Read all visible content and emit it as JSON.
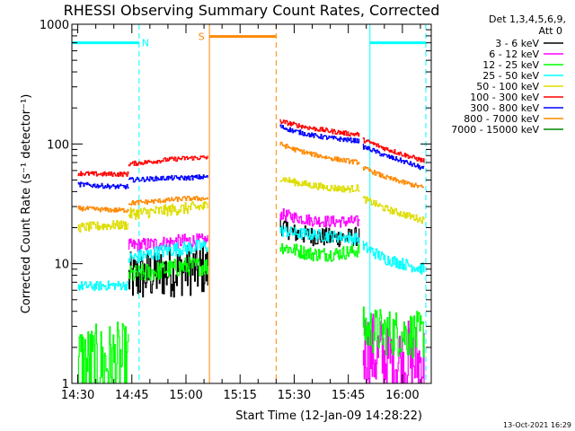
{
  "chart_data": {
    "type": "line",
    "title": "RHESSI Observing Summary Count Rates, Corrected",
    "xlabel": "Start Time (12-Jan-09 14:28:22)",
    "ylabel": "Corrected Count Rate (s⁻¹ detector⁻¹)",
    "y_scale": "log",
    "ylim": [
      1,
      1000
    ],
    "xlim": [
      "14:28:22",
      "16:08:00"
    ],
    "x_ticks": [
      "14:30",
      "14:45",
      "15:00",
      "15:15",
      "15:30",
      "15:45",
      "16:00"
    ],
    "y_ticks": [
      "1",
      "10",
      "100",
      "1000"
    ],
    "legend_header": [
      "Det 1,3,4,5,6,9,",
      "Att 0"
    ],
    "legend_position": "right",
    "timestamp": "13-Oct-2021 16:29",
    "markers": [
      {
        "label": "N",
        "color": "#00ffff",
        "kind": "night",
        "start": "14:28:22",
        "end": "14:47:00",
        "level": 700
      },
      {
        "label": "S",
        "color": "#ff8800",
        "kind": "saa",
        "start": "15:06:30",
        "end": "15:25:00",
        "level": 790
      },
      {
        "label": "",
        "color": "#00ffff",
        "kind": "night",
        "start": "15:51:00",
        "end": "16:06:30",
        "level": 700
      }
    ],
    "series": [
      {
        "name": "3 - 6 keV",
        "color": "#000000",
        "segments": [
          {
            "times": [
              "14:44:00",
              "14:50:00",
              "14:55:00",
              "15:00:00",
              "15:05:00",
              "15:06:00"
            ],
            "values": [
              7.5,
              8.0,
              8.6,
              8.9,
              8.9,
              8.6
            ],
            "noise": 0.22
          },
          {
            "times": [
              "15:26:00",
              "15:30:00",
              "15:35:00",
              "15:40:00",
              "15:45:00",
              "15:48:00"
            ],
            "values": [
              21,
              18,
              17,
              16.5,
              16.5,
              17
            ],
            "noise": 0.08
          }
        ]
      },
      {
        "name": "6 - 12 keV",
        "color": "#ff00ff",
        "segments": [
          {
            "times": [
              "14:44:00",
              "14:50:00",
              "14:55:00",
              "15:00:00",
              "15:05:00",
              "15:06:00"
            ],
            "values": [
              14,
              14.5,
              15,
              15.5,
              15.5,
              15.5
            ],
            "noise": 0.06
          },
          {
            "times": [
              "15:26:00",
              "15:30:00",
              "15:35:00",
              "15:40:00",
              "15:45:00",
              "15:48:00"
            ],
            "values": [
              26,
              24.5,
              23,
              22.5,
              22.5,
              22.5
            ],
            "noise": 0.05
          },
          {
            "times": [
              "15:49:00",
              "15:55:00",
              "16:00:00",
              "16:06:00"
            ],
            "values": [
              2.0,
              1.6,
              1.55,
              1.5
            ],
            "noise": 0.35
          }
        ]
      },
      {
        "name": "12 - 25 keV",
        "color": "#00ff00",
        "segments": [
          {
            "times": [
              "14:30:00",
              "14:35:00",
              "14:40:00",
              "14:44:00"
            ],
            "values": [
              1.5,
              1.4,
              1.5,
              1.4
            ],
            "noise": 0.35
          },
          {
            "times": [
              "14:44:00",
              "14:50:00",
              "14:55:00",
              "15:00:00",
              "15:05:00",
              "15:06:00"
            ],
            "values": [
              8.0,
              8.5,
              9.0,
              9.5,
              9.5,
              9.5
            ],
            "noise": 0.08
          },
          {
            "times": [
              "15:26:00",
              "15:30:00",
              "15:35:00",
              "15:40:00",
              "15:45:00",
              "15:48:00"
            ],
            "values": [
              14,
              13,
              12,
              12,
              12.5,
              13
            ],
            "noise": 0.06
          },
          {
            "times": [
              "15:49:00",
              "15:55:00",
              "16:00:00",
              "16:06:00"
            ],
            "values": [
              2.8,
              2.7,
              2.6,
              2.5
            ],
            "noise": 0.2
          }
        ]
      },
      {
        "name": "25 - 50 keV",
        "color": "#00ffff",
        "segments": [
          {
            "times": [
              "14:30:00",
              "14:35:00",
              "14:40:00",
              "14:44:00"
            ],
            "values": [
              6.5,
              6.5,
              6.6,
              6.6
            ],
            "noise": 0.04
          },
          {
            "times": [
              "14:44:00",
              "14:50:00",
              "14:55:00",
              "15:00:00",
              "15:05:00",
              "15:06:00"
            ],
            "values": [
              11,
              12,
              13,
              13.5,
              14,
              14
            ],
            "noise": 0.06
          },
          {
            "times": [
              "15:26:00",
              "15:30:00",
              "15:35:00",
              "15:40:00",
              "15:45:00",
              "15:48:00"
            ],
            "values": [
              19,
              18,
              17.5,
              17,
              16.5,
              16
            ],
            "noise": 0.05
          },
          {
            "times": [
              "15:49:00",
              "15:52:00",
              "15:55:00",
              "16:00:00",
              "16:06:00"
            ],
            "values": [
              14,
              12.5,
              11,
              10,
              9
            ],
            "noise": 0.05
          }
        ]
      },
      {
        "name": "50 - 100 keV",
        "color": "#dddd00",
        "segments": [
          {
            "times": [
              "14:30:00",
              "14:35:00",
              "14:40:00",
              "14:44:00"
            ],
            "values": [
              20,
              20.5,
              21,
              21
            ],
            "noise": 0.04
          },
          {
            "times": [
              "14:44:00",
              "14:50:00",
              "14:55:00",
              "15:00:00",
              "15:05:00",
              "15:06:00"
            ],
            "values": [
              26,
              27,
              28,
              29,
              30,
              30
            ],
            "noise": 0.05
          },
          {
            "times": [
              "15:26:00",
              "15:30:00",
              "15:35:00",
              "15:40:00",
              "15:45:00",
              "15:48:00"
            ],
            "values": [
              52,
              48,
              45,
              43,
              42,
              43
            ],
            "noise": 0.03
          },
          {
            "times": [
              "15:49:00",
              "15:52:00",
              "15:55:00",
              "16:00:00",
              "16:06:00"
            ],
            "values": [
              35,
              32,
              29,
              26,
              23
            ],
            "noise": 0.03
          }
        ]
      },
      {
        "name": "100 - 300 keV",
        "color": "#ff0000",
        "segments": [
          {
            "times": [
              "14:30:00",
              "14:35:00",
              "14:40:00",
              "14:44:00"
            ],
            "values": [
              57,
              56,
              56,
              56
            ],
            "noise": 0.02
          },
          {
            "times": [
              "14:44:00",
              "14:50:00",
              "14:55:00",
              "15:00:00",
              "15:05:00",
              "15:06:00"
            ],
            "values": [
              68,
              71,
              74,
              76,
              77,
              77
            ],
            "noise": 0.02
          },
          {
            "times": [
              "15:26:00",
              "15:30:00",
              "15:35:00",
              "15:40:00",
              "15:45:00",
              "15:48:00"
            ],
            "values": [
              155,
              145,
              135,
              128,
              122,
              120
            ],
            "noise": 0.02
          },
          {
            "times": [
              "15:49:00",
              "15:52:00",
              "15:55:00",
              "16:00:00",
              "16:06:00"
            ],
            "values": [
              108,
              100,
              92,
              82,
              72
            ],
            "noise": 0.02
          }
        ]
      },
      {
        "name": "300 - 800 keV",
        "color": "#0000ff",
        "segments": [
          {
            "times": [
              "14:30:00",
              "14:35:00",
              "14:40:00",
              "14:44:00"
            ],
            "values": [
              46,
              45,
              44,
              44
            ],
            "noise": 0.02
          },
          {
            "times": [
              "14:44:00",
              "14:50:00",
              "14:55:00",
              "15:00:00",
              "15:05:00",
              "15:06:00"
            ],
            "values": [
              50,
              51,
              52,
              52,
              53,
              53
            ],
            "noise": 0.02
          },
          {
            "times": [
              "15:26:00",
              "15:30:00",
              "15:35:00",
              "15:40:00",
              "15:45:00",
              "15:48:00"
            ],
            "values": [
              140,
              128,
              118,
              112,
              108,
              106
            ],
            "noise": 0.02
          },
          {
            "times": [
              "15:49:00",
              "15:52:00",
              "15:55:00",
              "16:00:00",
              "16:06:00"
            ],
            "values": [
              95,
              88,
              80,
              72,
              62
            ],
            "noise": 0.02
          }
        ]
      },
      {
        "name": "800 - 7000 keV",
        "color": "#ff8800",
        "segments": [
          {
            "times": [
              "14:30:00",
              "14:35:00",
              "14:40:00",
              "14:44:00"
            ],
            "values": [
              29,
              28.5,
              28,
              28
            ],
            "noise": 0.02
          },
          {
            "times": [
              "14:44:00",
              "14:50:00",
              "14:55:00",
              "15:00:00",
              "15:05:00",
              "15:06:00"
            ],
            "values": [
              32,
              33,
              34,
              35,
              35,
              35
            ],
            "noise": 0.02
          },
          {
            "times": [
              "15:26:00",
              "15:30:00",
              "15:35:00",
              "15:40:00",
              "15:45:00",
              "15:48:00"
            ],
            "values": [
              100,
              90,
              82,
              76,
              72,
              70
            ],
            "noise": 0.02
          },
          {
            "times": [
              "15:49:00",
              "15:52:00",
              "15:55:00",
              "16:00:00",
              "16:06:00"
            ],
            "values": [
              63,
              58,
              53,
              48,
              43
            ],
            "noise": 0.02
          }
        ]
      },
      {
        "name": "7000 - 15000 keV",
        "color": "#008800",
        "segments": []
      }
    ]
  }
}
